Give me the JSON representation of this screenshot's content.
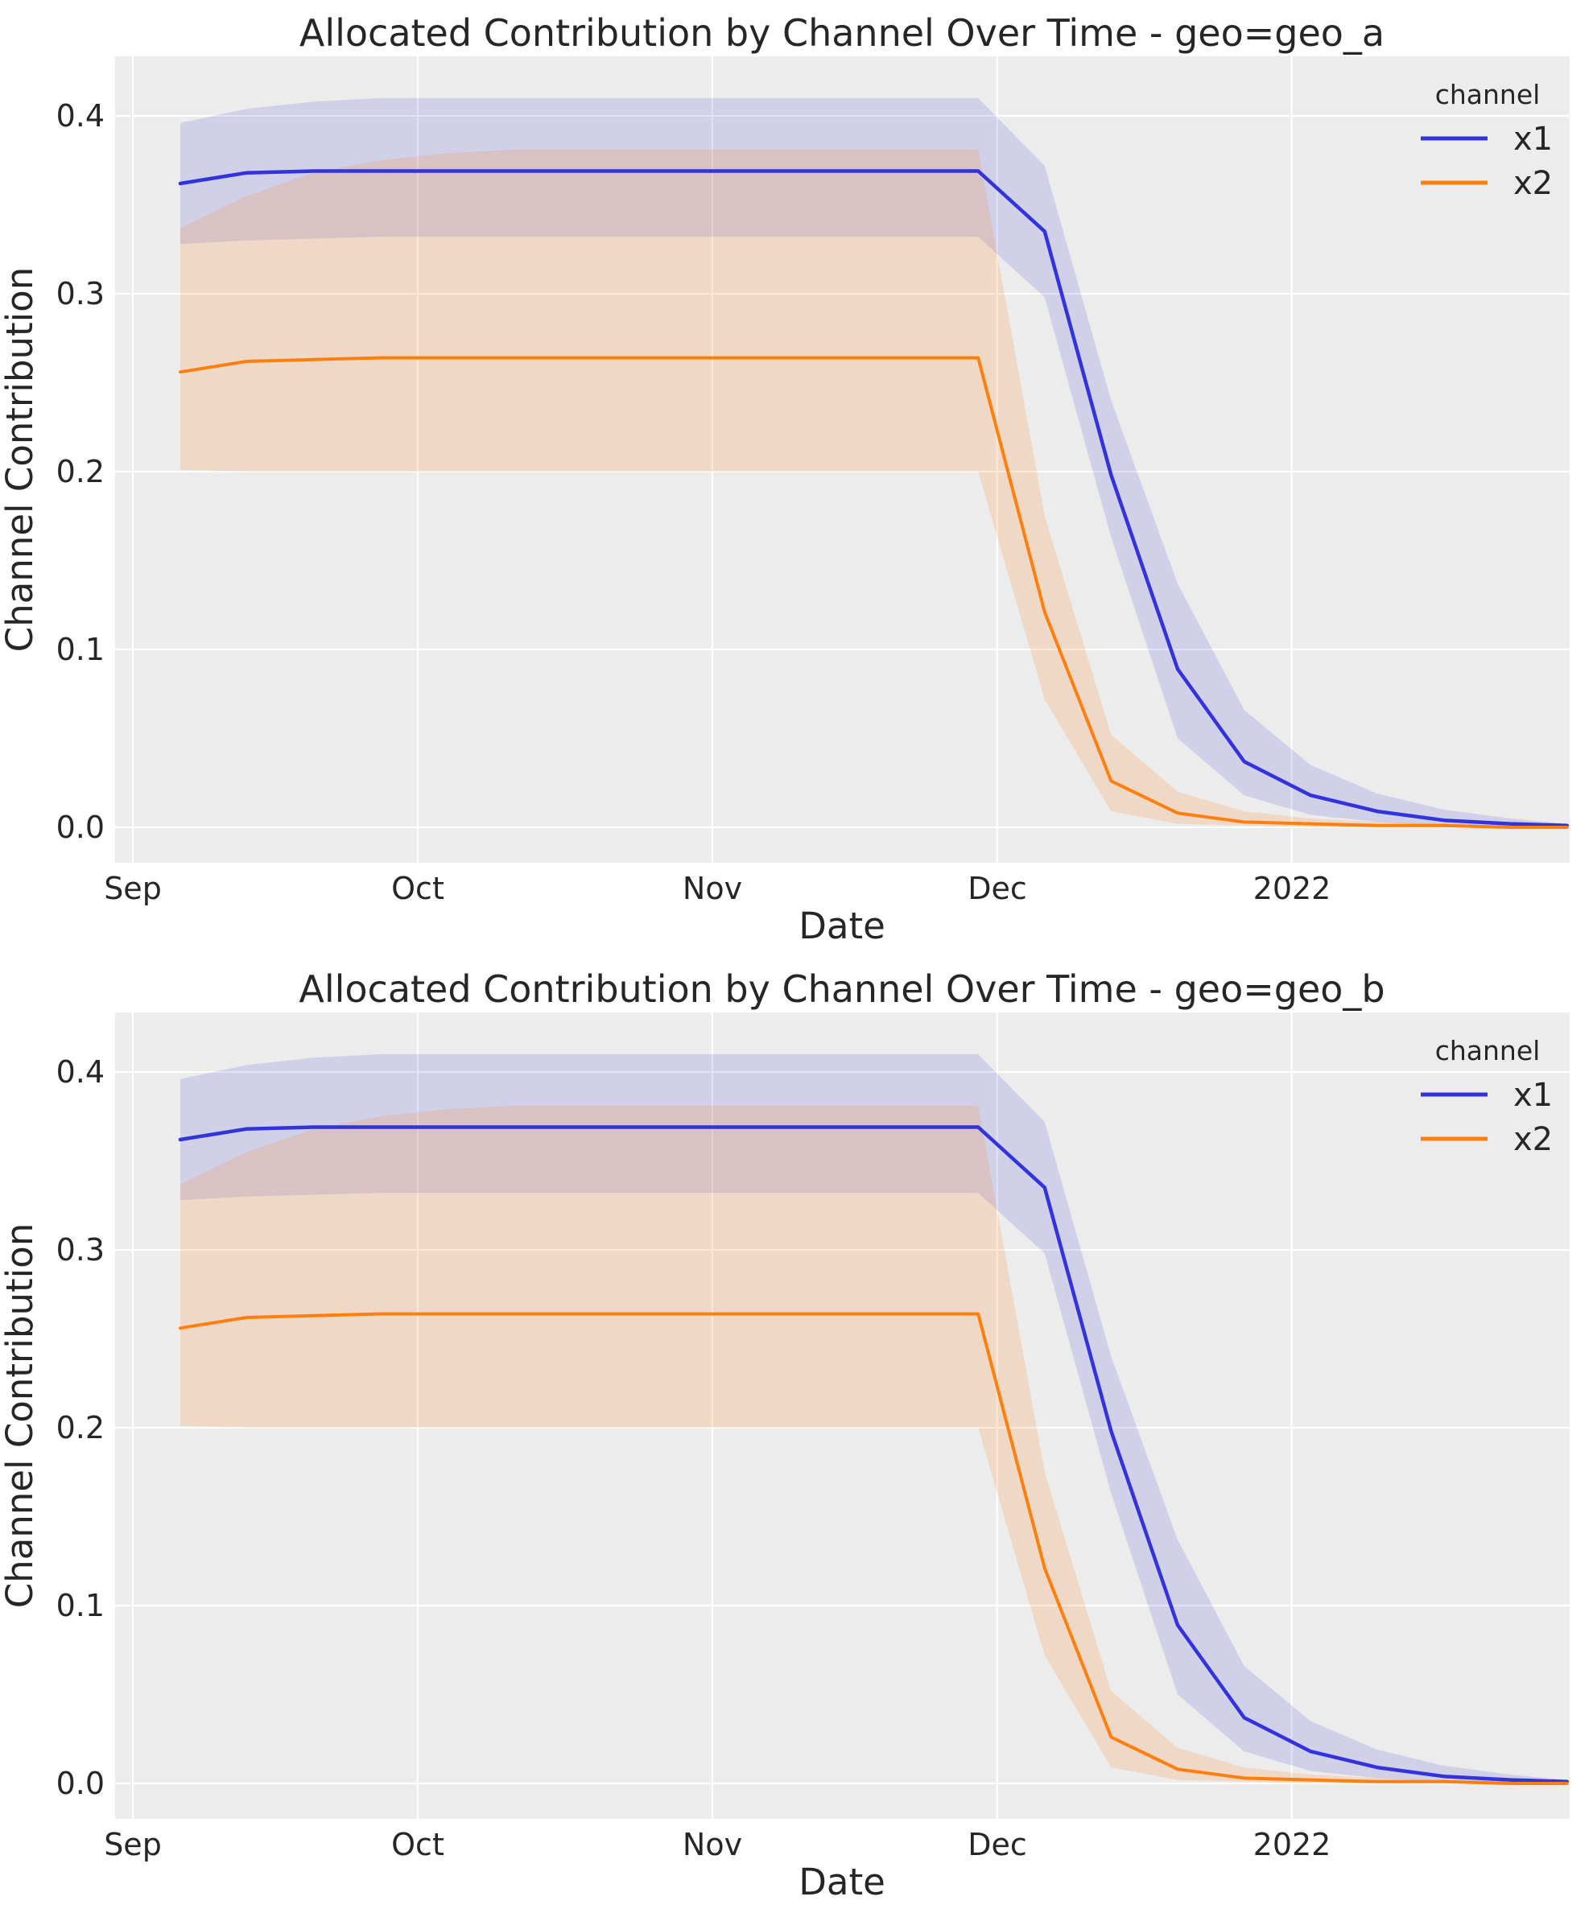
{
  "page": {
    "background": "#ffffff",
    "figure_type": "matplotlib-seaborn relplot, 2 rows"
  },
  "chart_data": [
    {
      "type": "line",
      "title": "Allocated Contribution by Channel Over Time - geo=geo_a",
      "xlabel": "Date",
      "ylabel": "Channel Contribution",
      "legend_title": "channel",
      "legend_position": "upper right inside axes",
      "grid": true,
      "grid_color": "#ffffff",
      "axes_background": "#ececec",
      "ylim": [
        -0.02,
        0.433
      ],
      "y_ticks": [
        "0.0",
        "0.1",
        "0.2",
        "0.3",
        "0.4"
      ],
      "y_tick_values": [
        0.0,
        0.1,
        0.2,
        0.3,
        0.4
      ],
      "x_tick_labels": [
        "Sep",
        "Oct",
        "Nov",
        "Dec",
        "2022"
      ],
      "x_tick_days": [
        0,
        30,
        61,
        91,
        122
      ],
      "dates": [
        "2021-09-06",
        "2021-09-13",
        "2021-09-20",
        "2021-09-27",
        "2021-10-04",
        "2021-10-11",
        "2021-10-18",
        "2021-10-25",
        "2021-11-01",
        "2021-11-08",
        "2021-11-15",
        "2021-11-22",
        "2021-11-29",
        "2021-12-06",
        "2021-12-13",
        "2021-12-20",
        "2021-12-27",
        "2022-01-03",
        "2022-01-10",
        "2022-01-17",
        "2022-01-24",
        "2022-01-30"
      ],
      "x_days": [
        5,
        12,
        19,
        26,
        33,
        40,
        47,
        54,
        61,
        68,
        75,
        82,
        89,
        96,
        103,
        110,
        117,
        124,
        131,
        138,
        145,
        151
      ],
      "series": [
        {
          "name": "x1",
          "color": "#3333dd",
          "values": [
            0.362,
            0.368,
            0.369,
            0.369,
            0.369,
            0.369,
            0.369,
            0.369,
            0.369,
            0.369,
            0.369,
            0.369,
            0.369,
            0.335,
            0.198,
            0.089,
            0.037,
            0.018,
            0.009,
            0.004,
            0.002,
            0.001
          ],
          "ci_upper": [
            0.396,
            0.404,
            0.408,
            0.41,
            0.41,
            0.41,
            0.41,
            0.41,
            0.41,
            0.41,
            0.41,
            0.41,
            0.41,
            0.372,
            0.24,
            0.137,
            0.066,
            0.035,
            0.019,
            0.01,
            0.005,
            0.002
          ],
          "ci_lower": [
            0.328,
            0.33,
            0.331,
            0.332,
            0.332,
            0.332,
            0.332,
            0.332,
            0.332,
            0.332,
            0.332,
            0.332,
            0.332,
            0.298,
            0.163,
            0.05,
            0.018,
            0.007,
            0.003,
            0.001,
            0.0,
            0.0
          ]
        },
        {
          "name": "x2",
          "color": "#ff7f0e",
          "values": [
            0.256,
            0.262,
            0.263,
            0.264,
            0.264,
            0.264,
            0.264,
            0.264,
            0.264,
            0.264,
            0.264,
            0.264,
            0.264,
            0.121,
            0.026,
            0.008,
            0.003,
            0.002,
            0.001,
            0.001,
            0.0,
            0.0
          ],
          "ci_upper": [
            0.337,
            0.355,
            0.368,
            0.375,
            0.379,
            0.381,
            0.381,
            0.381,
            0.381,
            0.381,
            0.381,
            0.381,
            0.381,
            0.175,
            0.052,
            0.02,
            0.009,
            0.005,
            0.003,
            0.002,
            0.001,
            0.001
          ],
          "ci_lower": [
            0.201,
            0.2,
            0.2,
            0.2,
            0.2,
            0.2,
            0.2,
            0.2,
            0.2,
            0.2,
            0.2,
            0.2,
            0.2,
            0.072,
            0.009,
            0.002,
            0.001,
            0.0,
            0.0,
            0.0,
            0.0,
            0.0
          ]
        }
      ]
    },
    {
      "type": "line",
      "title": "Allocated Contribution by Channel Over Time - geo=geo_b",
      "xlabel": "Date",
      "ylabel": "Channel Contribution",
      "legend_title": "channel",
      "legend_position": "upper right inside axes",
      "grid": true,
      "grid_color": "#ffffff",
      "axes_background": "#ececec",
      "ylim": [
        -0.02,
        0.433
      ],
      "y_ticks": [
        "0.0",
        "0.1",
        "0.2",
        "0.3",
        "0.4"
      ],
      "y_tick_values": [
        0.0,
        0.1,
        0.2,
        0.3,
        0.4
      ],
      "x_tick_labels": [
        "Sep",
        "Oct",
        "Nov",
        "Dec",
        "2022"
      ],
      "x_tick_days": [
        0,
        30,
        61,
        91,
        122
      ],
      "dates": [
        "2021-09-06",
        "2021-09-13",
        "2021-09-20",
        "2021-09-27",
        "2021-10-04",
        "2021-10-11",
        "2021-10-18",
        "2021-10-25",
        "2021-11-01",
        "2021-11-08",
        "2021-11-15",
        "2021-11-22",
        "2021-11-29",
        "2021-12-06",
        "2021-12-13",
        "2021-12-20",
        "2021-12-27",
        "2022-01-03",
        "2022-01-10",
        "2022-01-17",
        "2022-01-24",
        "2022-01-30"
      ],
      "x_days": [
        5,
        12,
        19,
        26,
        33,
        40,
        47,
        54,
        61,
        68,
        75,
        82,
        89,
        96,
        103,
        110,
        117,
        124,
        131,
        138,
        145,
        151
      ],
      "series": [
        {
          "name": "x1",
          "color": "#3333dd",
          "values": [
            0.362,
            0.368,
            0.369,
            0.369,
            0.369,
            0.369,
            0.369,
            0.369,
            0.369,
            0.369,
            0.369,
            0.369,
            0.369,
            0.335,
            0.198,
            0.089,
            0.037,
            0.018,
            0.009,
            0.004,
            0.002,
            0.001
          ],
          "ci_upper": [
            0.396,
            0.404,
            0.408,
            0.41,
            0.41,
            0.41,
            0.41,
            0.41,
            0.41,
            0.41,
            0.41,
            0.41,
            0.41,
            0.372,
            0.24,
            0.137,
            0.066,
            0.035,
            0.019,
            0.01,
            0.005,
            0.002
          ],
          "ci_lower": [
            0.328,
            0.33,
            0.331,
            0.332,
            0.332,
            0.332,
            0.332,
            0.332,
            0.332,
            0.332,
            0.332,
            0.332,
            0.332,
            0.298,
            0.163,
            0.05,
            0.018,
            0.007,
            0.003,
            0.001,
            0.0,
            0.0
          ]
        },
        {
          "name": "x2",
          "color": "#ff7f0e",
          "values": [
            0.256,
            0.262,
            0.263,
            0.264,
            0.264,
            0.264,
            0.264,
            0.264,
            0.264,
            0.264,
            0.264,
            0.264,
            0.264,
            0.121,
            0.026,
            0.008,
            0.003,
            0.002,
            0.001,
            0.001,
            0.0,
            0.0
          ],
          "ci_upper": [
            0.337,
            0.355,
            0.368,
            0.375,
            0.379,
            0.381,
            0.381,
            0.381,
            0.381,
            0.381,
            0.381,
            0.381,
            0.381,
            0.175,
            0.052,
            0.02,
            0.009,
            0.005,
            0.003,
            0.002,
            0.001,
            0.001
          ],
          "ci_lower": [
            0.201,
            0.2,
            0.2,
            0.2,
            0.2,
            0.2,
            0.2,
            0.2,
            0.2,
            0.2,
            0.2,
            0.2,
            0.2,
            0.072,
            0.009,
            0.002,
            0.001,
            0.0,
            0.0,
            0.0,
            0.0,
            0.0
          ]
        }
      ]
    }
  ]
}
